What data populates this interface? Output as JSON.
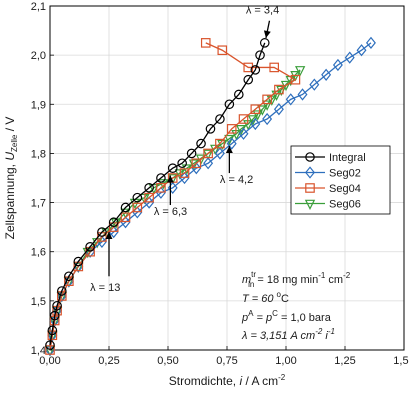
{
  "chart_data": {
    "type": "line",
    "xlim": [
      0,
      1.5
    ],
    "ylim": [
      1.4,
      2.1
    ],
    "grid": true,
    "legend_position": "right-middle",
    "x_ticks": [
      0,
      0.25,
      0.5,
      0.75,
      1.0,
      1.25,
      1.5
    ],
    "x_tick_labels": [
      "0,00",
      "0,25",
      "0,50",
      "0,75",
      "1,00",
      "1,25",
      "1,50"
    ],
    "y_ticks": [
      1.4,
      1.5,
      1.6,
      1.7,
      1.8,
      1.9,
      2.0,
      2.1
    ],
    "y_tick_labels": [
      "1,4",
      "1,5",
      "1,6",
      "1,7",
      "1,8",
      "1,9",
      "2,0",
      "2,1"
    ],
    "xlabel": {
      "main": "Stromdichte, ",
      "italic": "i",
      "unit": " / A cm",
      "sup": "-2"
    },
    "ylabel": {
      "main": "Zellspannung, ",
      "italic": "U",
      "sub": "Zelle",
      "unit": " / V"
    },
    "series": [
      {
        "name": "Integral",
        "color": "#000000",
        "marker": "circle",
        "x": [
          0.0,
          0.01,
          0.02,
          0.03,
          0.05,
          0.08,
          0.12,
          0.17,
          0.22,
          0.27,
          0.32,
          0.37,
          0.42,
          0.47,
          0.52,
          0.56,
          0.6,
          0.64,
          0.68,
          0.72,
          0.76,
          0.8,
          0.84,
          0.87,
          0.89,
          0.91
        ],
        "y": [
          1.41,
          1.44,
          1.47,
          1.49,
          1.52,
          1.55,
          1.58,
          1.61,
          1.64,
          1.66,
          1.69,
          1.71,
          1.73,
          1.75,
          1.77,
          1.78,
          1.8,
          1.82,
          1.85,
          1.87,
          1.9,
          1.92,
          1.95,
          1.97,
          2.0,
          2.025
        ]
      },
      {
        "name": "Seg02",
        "color": "#2e6fbd",
        "marker": "diamond",
        "x": [
          0.0,
          0.01,
          0.02,
          0.03,
          0.05,
          0.08,
          0.12,
          0.17,
          0.22,
          0.27,
          0.32,
          0.37,
          0.42,
          0.47,
          0.52,
          0.57,
          0.62,
          0.67,
          0.72,
          0.77,
          0.82,
          0.87,
          0.92,
          0.97,
          1.02,
          1.07,
          1.12,
          1.17,
          1.22,
          1.27,
          1.32,
          1.36
        ],
        "y": [
          1.4,
          1.43,
          1.46,
          1.48,
          1.51,
          1.54,
          1.57,
          1.6,
          1.62,
          1.64,
          1.66,
          1.68,
          1.7,
          1.72,
          1.73,
          1.75,
          1.77,
          1.78,
          1.8,
          1.82,
          1.84,
          1.86,
          1.87,
          1.89,
          1.91,
          1.92,
          1.94,
          1.96,
          1.98,
          1.995,
          2.01,
          2.025
        ]
      },
      {
        "name": "Seg04",
        "color": "#d9542c",
        "marker": "square",
        "x": [
          0.0,
          0.01,
          0.02,
          0.03,
          0.05,
          0.08,
          0.12,
          0.17,
          0.22,
          0.27,
          0.32,
          0.37,
          0.42,
          0.47,
          0.52,
          0.57,
          0.62,
          0.67,
          0.72,
          0.77,
          0.82,
          0.87,
          0.92,
          0.97,
          1.04,
          0.95,
          0.84,
          0.73,
          0.66
        ],
        "y": [
          1.4,
          1.43,
          1.46,
          1.48,
          1.51,
          1.54,
          1.57,
          1.6,
          1.63,
          1.65,
          1.67,
          1.69,
          1.71,
          1.73,
          1.75,
          1.76,
          1.78,
          1.8,
          1.82,
          1.85,
          1.87,
          1.89,
          1.91,
          1.93,
          1.95,
          1.975,
          1.975,
          2.01,
          2.025
        ]
      },
      {
        "name": "Seg06",
        "color": "#3a9e3a",
        "marker": "triangle-down",
        "x": [
          0.0,
          0.01,
          0.02,
          0.03,
          0.05,
          0.08,
          0.12,
          0.16,
          0.2,
          0.24,
          0.28,
          0.32,
          0.36,
          0.4,
          0.44,
          0.48,
          0.52,
          0.55,
          0.58,
          0.61,
          0.64,
          0.67,
          0.7,
          0.73,
          0.76,
          0.79,
          0.81,
          0.84,
          0.86,
          0.88,
          0.9,
          0.92,
          0.94,
          0.96,
          0.98,
          1.0,
          1.02,
          1.04,
          1.06
        ],
        "y": [
          1.4,
          1.43,
          1.46,
          1.48,
          1.51,
          1.54,
          1.57,
          1.6,
          1.62,
          1.64,
          1.66,
          1.68,
          1.7,
          1.71,
          1.73,
          1.74,
          1.75,
          1.76,
          1.77,
          1.78,
          1.79,
          1.8,
          1.81,
          1.82,
          1.83,
          1.84,
          1.85,
          1.86,
          1.87,
          1.88,
          1.89,
          1.9,
          1.91,
          1.92,
          1.93,
          1.94,
          1.95,
          1.96,
          1.97
        ]
      }
    ],
    "annotations": [
      {
        "label": "λ = 3,4",
        "arrow_from": [
          0.93,
          2.07
        ],
        "arrow_to": [
          0.915,
          2.035
        ],
        "text_at": [
          0.83,
          2.085
        ]
      },
      {
        "label": "λ = 4,2",
        "arrow_from": [
          0.76,
          1.76
        ],
        "arrow_to": [
          0.76,
          1.815
        ],
        "text_at": [
          0.72,
          1.74
        ]
      },
      {
        "label": "λ = 6,3",
        "arrow_from": [
          0.51,
          1.695
        ],
        "arrow_to": [
          0.51,
          1.755
        ],
        "text_at": [
          0.44,
          1.675
        ]
      },
      {
        "label": "λ = 13",
        "arrow_from": [
          0.25,
          1.55
        ],
        "arrow_to": [
          0.25,
          1.64
        ],
        "text_at": [
          0.17,
          1.52
        ]
      }
    ],
    "params": {
      "line1": "m",
      "line1_sup": "tr",
      "line1_sub": "in",
      "line1_rest": " = 18  mg min",
      "line1_sup2": "-1",
      "line1_end": " cm",
      "line1_sup3": "-2",
      "line2": "T = 60 ",
      "line2_sup": "o",
      "line2_end": "C",
      "line3": "p",
      "line3_sup": "A",
      "line3_mid": " = p",
      "line3_sup2": "C",
      "line3_end": " = 1,0 bara",
      "line4": "λ = 3,151 A cm",
      "line4_sup": "-2",
      "line4_end": " i",
      "line4_sup2": "-1"
    }
  }
}
